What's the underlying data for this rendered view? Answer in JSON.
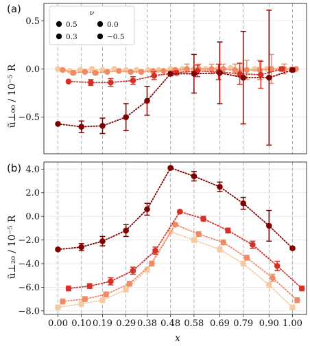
{
  "colors": {
    "nu_0.5": "#f6c9a0",
    "nu_0.3": "#ef8a62",
    "nu_0.0": "#d73027",
    "nu_-0.5": "#7f0000"
  },
  "chart_data": [
    {
      "type": "scatter",
      "panel_label": "(a)",
      "xlabel": "",
      "ylabel": "ũ⊥₀₀ / 10⁻⁵ R",
      "xlim": [
        -0.06,
        1.06
      ],
      "ylim": [
        -0.88,
        0.68
      ],
      "yticks": [
        {
          "v": 0.5,
          "label": "0.5"
        },
        {
          "v": 0.0,
          "label": "0.0"
        },
        {
          "v": -0.5,
          "label": "−0.5"
        }
      ],
      "legend": {
        "title": "ν",
        "placement": "top-left",
        "entries": [
          "0.5",
          "0.3",
          "0.0",
          "−0.5"
        ]
      },
      "series": [
        {
          "name": "0.5",
          "color": "#f6c9a0",
          "x": [
            0.0,
            0.05,
            0.095,
            0.145,
            0.19,
            0.24,
            0.29,
            0.335,
            0.385,
            0.43,
            0.48,
            0.53,
            0.58,
            0.63,
            0.68,
            0.735,
            0.785,
            0.84,
            0.89,
            0.945,
            0.995
          ],
          "y": [
            0.0,
            -0.02,
            -0.01,
            0.0,
            -0.01,
            0.0,
            -0.01,
            -0.01,
            -0.01,
            -0.01,
            0.0,
            0.0,
            0.0,
            0.0,
            0.0,
            0.01,
            0.0,
            0.0,
            0.0,
            0.0,
            0.0
          ],
          "err": [
            0,
            0,
            0,
            0,
            0,
            0,
            0,
            0,
            0,
            0,
            0,
            0,
            0,
            0,
            0,
            0.01,
            0.05,
            0.02,
            0,
            0,
            0
          ]
        },
        {
          "name": "0.3",
          "color": "#ef8a62",
          "x": [
            0.02,
            0.065,
            0.115,
            0.16,
            0.21,
            0.26,
            0.31,
            0.355,
            0.405,
            0.45,
            0.5,
            0.55,
            0.6,
            0.655,
            0.705,
            0.755,
            0.805,
            0.86,
            0.91,
            0.965,
            1.015
          ],
          "y": [
            -0.01,
            -0.04,
            -0.03,
            -0.04,
            -0.03,
            -0.02,
            -0.03,
            -0.03,
            -0.02,
            -0.02,
            -0.01,
            0.0,
            0.0,
            0.0,
            0.0,
            -0.01,
            -0.01,
            -0.01,
            0.0,
            0.0,
            0.0
          ],
          "err": [
            0,
            0.02,
            0,
            0.02,
            0,
            0,
            0,
            0,
            0,
            0,
            0,
            0.05,
            0.05,
            0.05,
            0.05,
            0.06,
            0.1,
            0.1,
            0.15,
            0.05,
            0
          ]
        },
        {
          "name": "0.0",
          "color": "#d73027",
          "x": [
            0.045,
            0.14,
            0.225,
            0.32,
            0.41,
            0.505,
            0.595,
            0.685,
            0.775,
            0.865,
            0.955
          ],
          "y": [
            -0.13,
            -0.14,
            -0.14,
            -0.12,
            -0.07,
            -0.04,
            -0.02,
            -0.03,
            -0.05,
            -0.06,
            0.0
          ],
          "err": [
            0,
            0.03,
            0.04,
            0.04,
            0.04,
            0.02,
            0.06,
            0.08,
            0.11,
            0.14,
            0.02
          ]
        },
        {
          "name": "−0.5",
          "color": "#7f0000",
          "x": [
            0.0,
            0.1,
            0.19,
            0.29,
            0.38,
            0.48,
            0.58,
            0.69,
            0.79,
            0.9,
            1.0
          ],
          "y": [
            -0.57,
            -0.6,
            -0.59,
            -0.5,
            -0.33,
            -0.05,
            -0.05,
            -0.04,
            -0.09,
            -0.09,
            -0.01
          ],
          "err": [
            0,
            0.06,
            0.08,
            0.14,
            0.15,
            0.02,
            0.2,
            0.32,
            0.48,
            0.7,
            0.02
          ]
        }
      ]
    },
    {
      "type": "scatter",
      "panel_label": "(b)",
      "xlabel": "x",
      "ylabel": "ũ⊥₂₀ / 10⁻⁵ R",
      "xlim": [
        -0.06,
        1.06
      ],
      "ylim": [
        -8.3,
        4.6
      ],
      "yticks": [
        {
          "v": 4,
          "label": "4.0"
        },
        {
          "v": 2,
          "label": "2.0"
        },
        {
          "v": 0,
          "label": "0.0"
        },
        {
          "v": -2,
          "label": "−2.0"
        },
        {
          "v": -4,
          "label": "−4.0"
        },
        {
          "v": -6,
          "label": "−6.0"
        },
        {
          "v": -8,
          "label": "−8.0"
        }
      ],
      "xticks": [
        {
          "v": 0.0,
          "label": "0.00"
        },
        {
          "v": 0.1,
          "label": "0.10"
        },
        {
          "v": 0.19,
          "label": "0.19"
        },
        {
          "v": 0.29,
          "label": "0.29"
        },
        {
          "v": 0.38,
          "label": "0.38"
        },
        {
          "v": 0.48,
          "label": "0.48"
        },
        {
          "v": 0.58,
          "label": "0.58"
        },
        {
          "v": 0.69,
          "label": "0.69"
        },
        {
          "v": 0.79,
          "label": "0.79"
        },
        {
          "v": 0.9,
          "label": "0.90"
        },
        {
          "v": 1.0,
          "label": "1.00"
        }
      ],
      "series": [
        {
          "name": "0.5",
          "color": "#f6c9a0",
          "x": [
            0.0,
            0.1,
            0.19,
            0.29,
            0.38,
            0.48,
            0.58,
            0.69,
            0.79,
            0.9,
            1.0
          ],
          "y": [
            -7.7,
            -7.4,
            -7.1,
            -6.2,
            -4.5,
            -1.3,
            -2.0,
            -2.8,
            -4.0,
            -5.8,
            -7.7
          ],
          "err": [
            0.2,
            0.2,
            0.2,
            0.2,
            0.2,
            0.1,
            0.2,
            0.2,
            0.2,
            0.2,
            0.2
          ]
        },
        {
          "name": "0.3",
          "color": "#ef8a62",
          "x": [
            0.02,
            0.115,
            0.205,
            0.305,
            0.4,
            0.5,
            0.6,
            0.705,
            0.805,
            0.915,
            1.02
          ],
          "y": [
            -7.2,
            -7.0,
            -6.6,
            -5.7,
            -4.0,
            -0.7,
            -1.5,
            -2.2,
            -3.5,
            -5.2,
            -7.1
          ],
          "err": [
            0.2,
            0.2,
            0.2,
            0.2,
            0.2,
            0.1,
            0.2,
            0.2,
            0.2,
            0.3,
            0.2
          ]
        },
        {
          "name": "0.0",
          "color": "#d73027",
          "x": [
            0.045,
            0.135,
            0.225,
            0.32,
            0.415,
            0.52,
            0.62,
            0.725,
            0.83,
            0.935,
            1.04
          ],
          "y": [
            -6.1,
            -5.9,
            -5.5,
            -4.6,
            -2.9,
            0.4,
            -0.2,
            -1.2,
            -2.4,
            -4.2,
            -6.1
          ],
          "err": [
            0.2,
            0.2,
            0.3,
            0.3,
            0.3,
            0.1,
            0.2,
            0.2,
            0.3,
            0.4,
            0.2
          ]
        },
        {
          "name": "−0.5",
          "color": "#7f0000",
          "x": [
            0.0,
            0.1,
            0.19,
            0.29,
            0.38,
            0.48,
            0.58,
            0.69,
            0.79,
            0.9,
            1.0
          ],
          "y": [
            -2.8,
            -2.6,
            -2.1,
            -1.2,
            0.6,
            4.1,
            3.4,
            2.5,
            1.1,
            -0.8,
            -2.7
          ],
          "err": [
            0.1,
            0.3,
            0.4,
            0.5,
            0.5,
            0.1,
            0.4,
            0.4,
            0.5,
            1.3,
            0.1
          ]
        }
      ]
    }
  ]
}
